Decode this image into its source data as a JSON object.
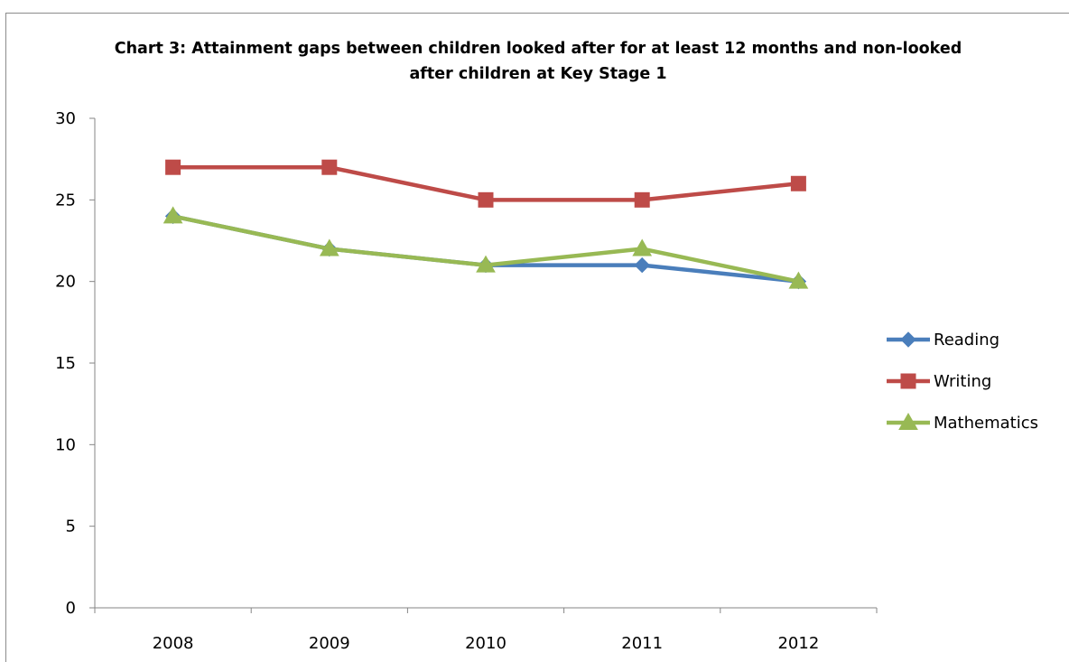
{
  "chart_data": {
    "type": "line",
    "title": "Chart 3: Attainment gaps between children looked after for at least 12 months and non-looked after children at Key Stage 1",
    "categories": [
      "2008",
      "2009",
      "2010",
      "2011",
      "2012"
    ],
    "ylim": [
      0,
      30
    ],
    "yticks": [
      "0",
      "5",
      "10",
      "15",
      "20",
      "25",
      "30"
    ],
    "grid": false,
    "legend_position": "right",
    "series": [
      {
        "name": "Reading",
        "values": [
          24,
          22,
          21,
          21,
          20
        ],
        "color": "#4a7ebb",
        "marker": "diamond"
      },
      {
        "name": "Writing",
        "values": [
          27,
          27,
          25,
          25,
          26
        ],
        "color": "#be4b48",
        "marker": "square"
      },
      {
        "name": "Mathematics",
        "values": [
          24,
          22,
          21,
          22,
          20
        ],
        "color": "#98b954",
        "marker": "triangle"
      }
    ]
  }
}
